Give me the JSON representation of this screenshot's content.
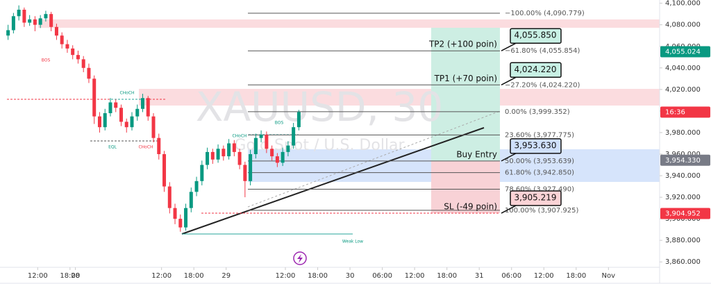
{
  "chart_data": {
    "type": "candlestick",
    "title": "XAUUSD, 30",
    "subtitle": "Gold Spot / U.S. Dollar",
    "up_color": "#089981",
    "down_color": "#f23645",
    "x": [
      3,
      5,
      7,
      9,
      11,
      13,
      15,
      17,
      19,
      21,
      23,
      25,
      27,
      29,
      31,
      33,
      35,
      37,
      39,
      41,
      43,
      45,
      47,
      49,
      51,
      53,
      55,
      57,
      59,
      61,
      63,
      65,
      67,
      69,
      71,
      73,
      75,
      77,
      79,
      81,
      83,
      85,
      87,
      89,
      91,
      93,
      95,
      97,
      99,
      101,
      103,
      105,
      107,
      109,
      111
    ],
    "open": [
      4070,
      4075,
      4088,
      4094,
      4082,
      4085,
      4080,
      4086,
      4090,
      4078,
      4070,
      4062,
      4058,
      4052,
      4048,
      4040,
      4030,
      3995,
      3985,
      3998,
      4008,
      4003,
      3990,
      3985,
      3995,
      4002,
      4012,
      3995,
      3975,
      3960,
      3930,
      3910,
      3900,
      3892,
      3910,
      3925,
      3935,
      3950,
      3962,
      3955,
      3965,
      3958,
      3970,
      3962,
      3950,
      3935,
      3960,
      3975,
      3978,
      3965,
      3958,
      3952,
      3962,
      3968,
      3985
    ],
    "high": [
      4080,
      4091,
      4098,
      4096,
      4089,
      4088,
      4089,
      4093,
      4092,
      4081,
      4073,
      4066,
      4061,
      4056,
      4051,
      4044,
      4033,
      3999,
      4002,
      4012,
      4011,
      4006,
      3993,
      3999,
      4006,
      4016,
      4014,
      3998,
      3979,
      3963,
      3934,
      3914,
      3904,
      3914,
      3929,
      3939,
      3954,
      3966,
      3965,
      3969,
      3968,
      3974,
      3973,
      3965,
      3953,
      3964,
      3979,
      3982,
      3981,
      3968,
      3961,
      3966,
      3972,
      3989,
      4001
    ],
    "low": [
      4066,
      4072,
      4084,
      4078,
      4079,
      4074,
      4077,
      4083,
      4074,
      4066,
      4058,
      4054,
      4048,
      4044,
      4036,
      4026,
      3988,
      3980,
      3982,
      3995,
      3999,
      3986,
      3980,
      3982,
      3991,
      3999,
      3991,
      3971,
      3955,
      3925,
      3905,
      3895,
      3888,
      3889,
      3906,
      3921,
      3931,
      3946,
      3951,
      3952,
      3954,
      3955,
      3958,
      3946,
      3920,
      3931,
      3956,
      3971,
      3961,
      3954,
      3948,
      3949,
      3958,
      3965,
      3982
    ],
    "close": [
      4075,
      4088,
      4094,
      4082,
      4085,
      4080,
      4086,
      4090,
      4078,
      4070,
      4062,
      4058,
      4052,
      4048,
      4040,
      4030,
      3995,
      3985,
      3998,
      4008,
      4003,
      3990,
      3985,
      3995,
      4002,
      4012,
      3995,
      3975,
      3960,
      3930,
      3910,
      3900,
      3892,
      3910,
      3925,
      3935,
      3950,
      3962,
      3955,
      3965,
      3958,
      3970,
      3962,
      3950,
      3935,
      3960,
      3975,
      3978,
      3965,
      3958,
      3952,
      3962,
      3968,
      3985,
      3999
    ],
    "xlim": [
      0,
      245
    ],
    "xticks": [
      {
        "value": 14,
        "label": "12:00"
      },
      {
        "value": 26,
        "label": "18:00"
      },
      28,
      {
        "value": 60,
        "label": "12:00"
      },
      {
        "value": 72,
        "label": "18:00"
      },
      {
        "value": 84,
        "label": "29"
      },
      {
        "value": 106,
        "label": "12:00"
      },
      {
        "value": 118,
        "label": "18:00"
      },
      {
        "value": 130,
        "label": "30"
      },
      {
        "value": 142,
        "label": "06:00"
      },
      {
        "value": 154,
        "label": "12:00"
      },
      {
        "value": 166,
        "label": "18:00"
      },
      {
        "value": 178,
        "label": "31"
      },
      {
        "value": 190,
        "label": "06:00"
      },
      {
        "value": 202,
        "label": "12:00"
      },
      {
        "value": 214,
        "label": "18:00"
      },
      {
        "value": 226,
        "label": "Nov"
      }
    ],
    "ylim": [
      3855,
      4103
    ],
    "yticks": [
      {
        "value": 4100,
        "label": "4,100.000"
      },
      {
        "value": 4080,
        "label": "4,080.000"
      },
      {
        "value": 4060,
        "label": "4,060.000"
      },
      {
        "value": 4040,
        "label": "4,040.000"
      },
      {
        "value": 4020,
        "label": "4,020.000"
      },
      {
        "value": 4000,
        "label": "4,000.000"
      },
      {
        "value": 3980,
        "label": "3,980.000"
      },
      {
        "value": 3960,
        "label": "3,960.000"
      },
      {
        "value": 3940,
        "label": "3,940.000"
      },
      {
        "value": 3920,
        "label": "3,920.000"
      },
      {
        "value": 3900,
        "label": "3,900.000"
      },
      {
        "value": 3880,
        "label": "3,880.000"
      },
      {
        "value": 3860,
        "label": "3,860.000"
      }
    ],
    "price_tags": [
      {
        "value": 4055.024,
        "label": "4,055.024",
        "color": "#089981"
      },
      {
        "value": 3954.33,
        "label": "3,954.330",
        "color": "#787b86"
      },
      {
        "value": 3904.952,
        "label": "3,904.952",
        "color": "#f23645"
      }
    ],
    "countdown": "16:36",
    "fib_levels": [
      {
        "value": 4090.779,
        "label": "−100.00% (4,090.779)"
      },
      {
        "value": 4055.854,
        "label": "−61.80% (4,055.854)"
      },
      {
        "value": 4024.22,
        "label": "−27.20% (4,024.220)"
      },
      {
        "value": 3999.352,
        "label": "0.00% (3,999.352)"
      },
      {
        "value": 3977.775,
        "label": "23.60% (3,977.775)"
      },
      {
        "value": 3953.639,
        "label": "50.00% (3,953.639)"
      },
      {
        "value": 3942.85,
        "label": "61.80% (3,942.850)"
      },
      {
        "value": 3927.49,
        "label": "78.60% (3,927.490)"
      },
      {
        "value": 3907.925,
        "label": "100.00% (3,907.925)"
      }
    ],
    "callouts": [
      {
        "value": 4055.85,
        "label": "4,055.850",
        "text": "TP2 (+100 poin)",
        "color": "#c8f0e4"
      },
      {
        "value": 4024.22,
        "label": "4,024.220",
        "text": "TP1 (+70 poin)",
        "color": "#c8f0e4"
      },
      {
        "value": 3953.63,
        "label": "3,953.630",
        "text": "Buy Entry",
        "color": "#cfe0fb"
      },
      {
        "value": 3905.219,
        "label": "3,905.219",
        "text": "SL (-49 poin)",
        "color": "#fbd3d6"
      }
    ],
    "annotations": [
      "BOS",
      "CHoCH",
      "EQL",
      "CHoCH",
      "CHoCH",
      "BOS",
      "Weak Low"
    ]
  }
}
